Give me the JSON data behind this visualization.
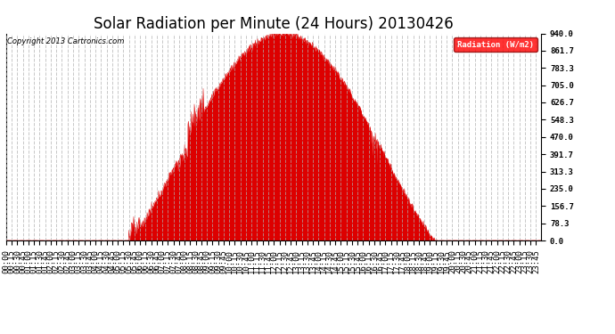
{
  "title": "Solar Radiation per Minute (24 Hours) 20130426",
  "copyright_text": "Copyright 2013 Cartronics.com",
  "legend_label": "Radiation (W/m2)",
  "ylim": [
    0,
    940.0
  ],
  "yticks": [
    0.0,
    78.3,
    156.7,
    235.0,
    313.3,
    391.7,
    470.0,
    548.3,
    626.7,
    705.0,
    783.3,
    861.7,
    940.0
  ],
  "fill_color": "#dd0000",
  "dashed_line_color": "#cc0000",
  "background_color": "#ffffff",
  "grid_color": "#b0b0b0",
  "title_fontsize": 12,
  "tick_label_fontsize": 6.5,
  "total_minutes": 1440,
  "sunrise_minute": 328,
  "sunset_minute": 1158,
  "peak_value": 940.0,
  "x_tick_interval": 15
}
